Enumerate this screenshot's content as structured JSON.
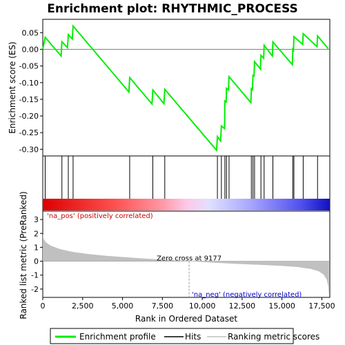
{
  "chart_data": {
    "type": "line",
    "title": "Enrichment plot: RHYTHMIC_PROCESS",
    "top_panel": {
      "ylabel": "Enrichment score (ES)",
      "ylim": [
        -0.32,
        0.09
      ],
      "yticks": [
        0.05,
        0.0,
        -0.05,
        -0.1,
        -0.15,
        -0.2,
        -0.25,
        -0.3
      ],
      "ytick_labels": [
        "0.05",
        "0.00",
        "-0.05",
        "-0.10",
        "-0.15",
        "-0.20",
        "-0.25",
        "-0.30"
      ],
      "series_name": "Enrichment profile",
      "color": "#00ee00",
      "es_points": [
        [
          0,
          0.0
        ],
        [
          150,
          0.036
        ],
        [
          1150,
          -0.02
        ],
        [
          1200,
          0.023
        ],
        [
          1550,
          0.005
        ],
        [
          1600,
          0.044
        ],
        [
          1850,
          0.031
        ],
        [
          1900,
          0.07
        ],
        [
          5400,
          -0.128
        ],
        [
          5450,
          -0.085
        ],
        [
          6850,
          -0.164
        ],
        [
          6900,
          -0.122
        ],
        [
          7600,
          -0.163
        ],
        [
          7650,
          -0.12
        ],
        [
          10900,
          -0.303
        ],
        [
          10950,
          -0.262
        ],
        [
          11150,
          -0.275
        ],
        [
          11200,
          -0.23
        ],
        [
          11400,
          -0.238
        ],
        [
          11420,
          -0.155
        ],
        [
          11500,
          -0.158
        ],
        [
          11520,
          -0.117
        ],
        [
          11650,
          -0.122
        ],
        [
          11680,
          -0.082
        ],
        [
          13050,
          -0.16
        ],
        [
          13080,
          -0.118
        ],
        [
          13150,
          -0.121
        ],
        [
          13180,
          -0.078
        ],
        [
          13250,
          -0.08
        ],
        [
          13280,
          -0.037
        ],
        [
          13650,
          -0.059
        ],
        [
          13680,
          -0.018
        ],
        [
          13850,
          -0.027
        ],
        [
          13880,
          0.012
        ],
        [
          14400,
          -0.02
        ],
        [
          14430,
          0.022
        ],
        [
          15650,
          -0.046
        ],
        [
          15680,
          0.0
        ],
        [
          15720,
          -0.003
        ],
        [
          15750,
          0.038
        ],
        [
          16300,
          0.015
        ],
        [
          16330,
          0.047
        ],
        [
          17200,
          0.008
        ],
        [
          17230,
          0.04
        ],
        [
          17900,
          0.002
        ]
      ]
    },
    "hits_panel": {
      "hit_positions": [
        150,
        1200,
        1600,
        1900,
        5450,
        6900,
        7650,
        10950,
        11200,
        11420,
        11520,
        11680,
        13080,
        13180,
        13280,
        13680,
        13880,
        14430,
        15680,
        15750,
        16330,
        17230
      ]
    },
    "bottom_panel": {
      "ylabel": "Ranked list metric (PreRanked)",
      "xlabel": "Rank in Ordered Dataset",
      "ylim": [
        -2.6,
        3.6
      ],
      "yticks": [
        3,
        2,
        1,
        0,
        -1,
        -2
      ],
      "ytick_labels": [
        "3",
        "2",
        "1",
        "0",
        "-1",
        "-2"
      ],
      "xlim": [
        0,
        18000
      ],
      "xticks": [
        0,
        2500,
        5000,
        7500,
        10000,
        12500,
        15000,
        17500
      ],
      "xtick_labels": [
        "0",
        "2,500",
        "5,000",
        "7,500",
        "10,000",
        "12,500",
        "15,000",
        "17,500"
      ],
      "metric_points": [
        [
          0,
          1.95
        ],
        [
          60,
          1.6
        ],
        [
          200,
          1.35
        ],
        [
          500,
          1.12
        ],
        [
          1000,
          0.9
        ],
        [
          1500,
          0.76
        ],
        [
          2000,
          0.65
        ],
        [
          3000,
          0.5
        ],
        [
          4000,
          0.39
        ],
        [
          5000,
          0.3
        ],
        [
          6000,
          0.22
        ],
        [
          7000,
          0.15
        ],
        [
          8000,
          0.09
        ],
        [
          9177,
          0.0
        ],
        [
          10000,
          -0.06
        ],
        [
          11000,
          -0.12
        ],
        [
          12000,
          -0.18
        ],
        [
          13000,
          -0.23
        ],
        [
          14000,
          -0.28
        ],
        [
          15000,
          -0.34
        ],
        [
          16000,
          -0.42
        ],
        [
          16800,
          -0.55
        ],
        [
          17300,
          -0.72
        ],
        [
          17600,
          -0.95
        ],
        [
          17800,
          -1.3
        ],
        [
          17900,
          -1.8
        ],
        [
          17950,
          -2.55
        ]
      ],
      "zero_cross_rank": 9177,
      "zero_cross_label": "Zero cross at 9177",
      "pos_label": "'na_pos' (positively correlated)",
      "neg_label": "'na_neg' (negatively correlated)",
      "pos_color": "#cc0000",
      "neg_color": "#0000cc",
      "fill_color": "#c0c0c0"
    },
    "legend": {
      "items": [
        "Enrichment profile",
        "Hits",
        "Ranking metric scores"
      ],
      "colors": [
        "#00ee00",
        "#000000",
        "#c0c0c0"
      ]
    }
  }
}
